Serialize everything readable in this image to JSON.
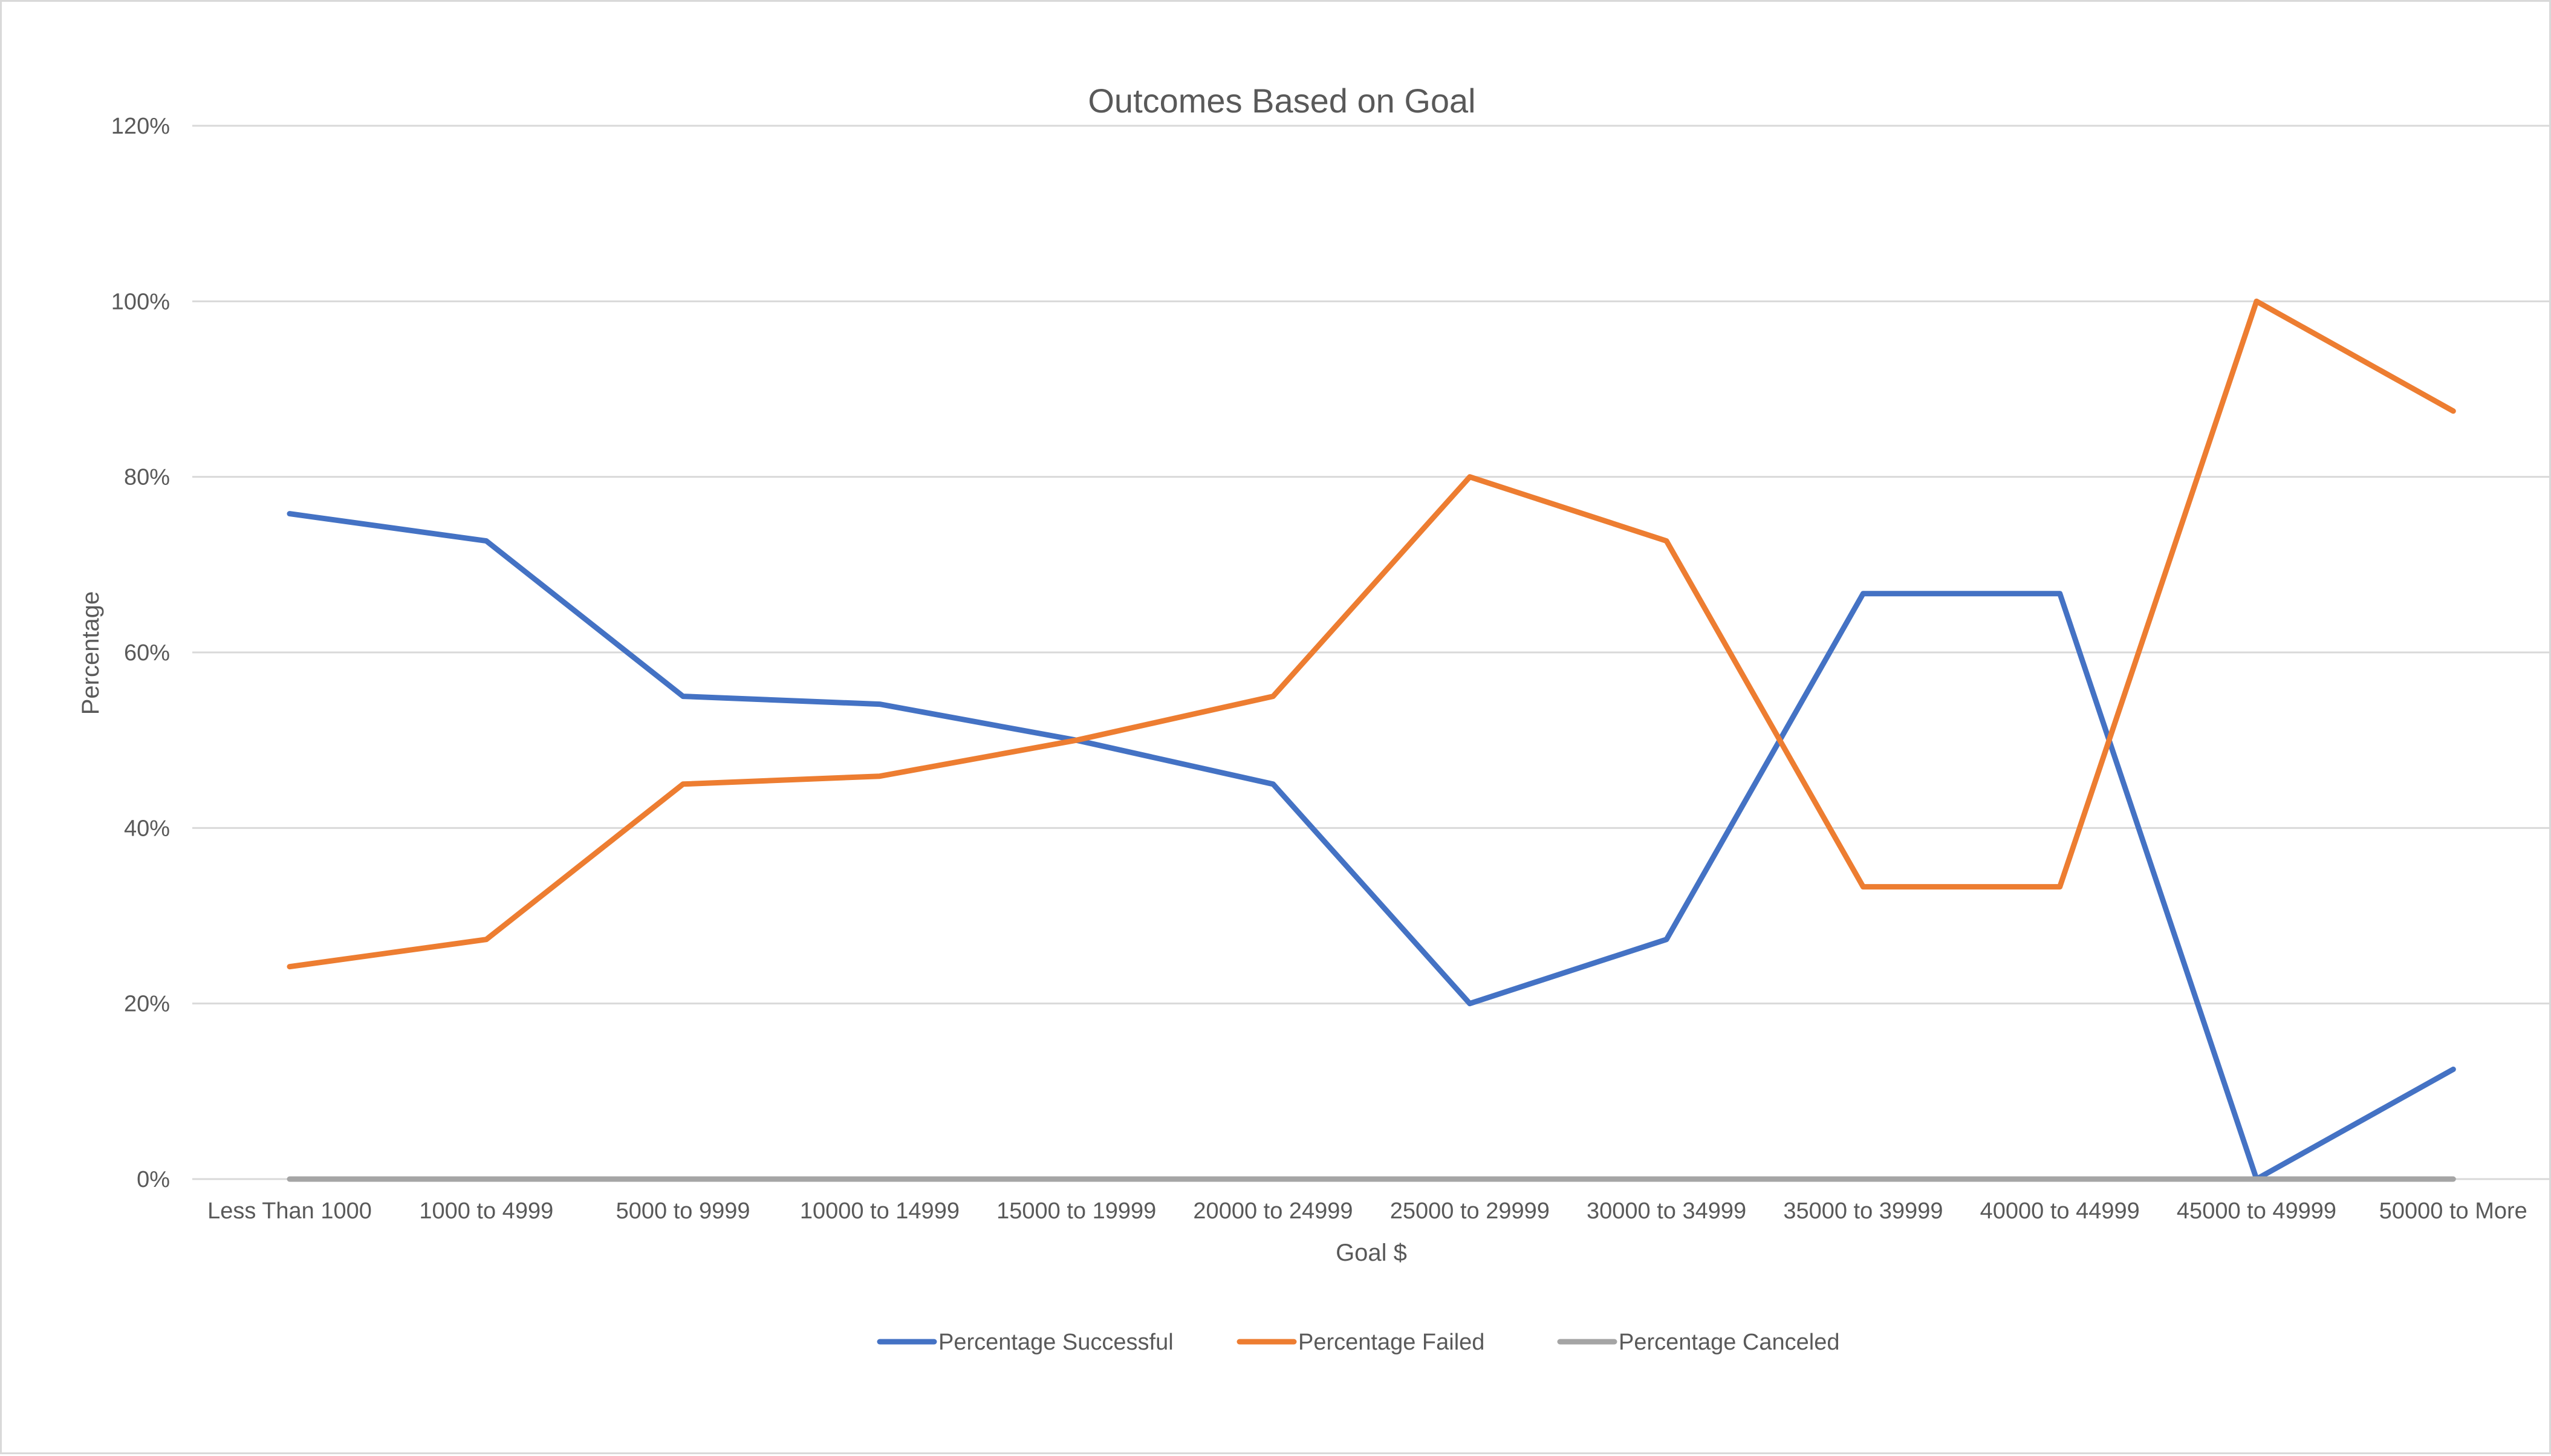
{
  "chart_data": {
    "type": "line",
    "title": "Outcomes Based on Goal",
    "xlabel": "Goal $",
    "ylabel": "Percentage",
    "categories": [
      "Less Than 1000",
      "1000 to 4999",
      "5000 to 9999",
      "10000 to 14999",
      "15000 to 19999",
      "20000 to 24999",
      "25000 to 29999",
      "30000 to 34999",
      "35000 to 39999",
      "40000 to 44999",
      "45000 to 49999",
      "50000 to More"
    ],
    "y_ticks": [
      "0%",
      "20%",
      "40%",
      "60%",
      "80%",
      "100%",
      "120%"
    ],
    "ylim": [
      0,
      1.2
    ],
    "grid": true,
    "legend_position": "bottom",
    "series": [
      {
        "name": "Percentage Successful",
        "color": "#4472c4",
        "values": [
          0.758,
          0.727,
          0.55,
          0.541,
          0.5,
          0.45,
          0.2,
          0.273,
          0.667,
          0.667,
          0.0,
          0.125
        ]
      },
      {
        "name": "Percentage Failed",
        "color": "#ed7d31",
        "values": [
          0.242,
          0.273,
          0.45,
          0.459,
          0.5,
          0.55,
          0.8,
          0.727,
          0.333,
          0.333,
          1.0,
          0.875
        ]
      },
      {
        "name": "Percentage Canceled",
        "color": "#a5a5a5",
        "values": [
          0,
          0,
          0,
          0,
          0,
          0,
          0,
          0,
          0,
          0,
          0,
          0
        ]
      }
    ]
  }
}
